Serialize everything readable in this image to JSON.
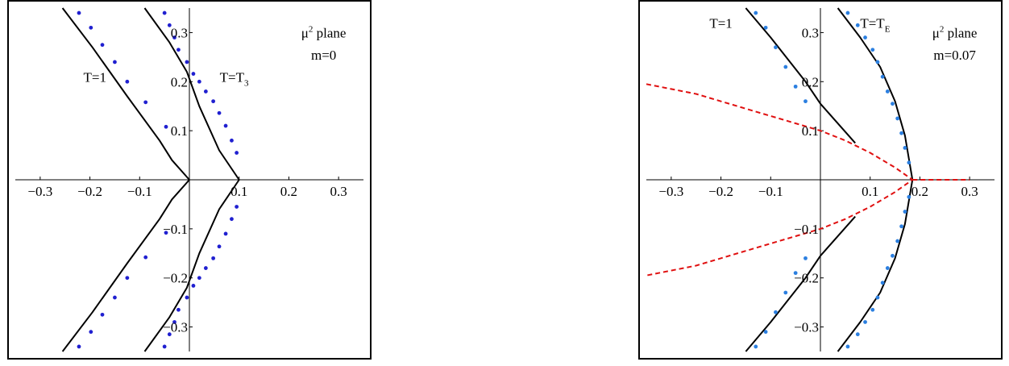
{
  "chart_data": [
    {
      "type": "line",
      "title": "",
      "xlabel": "",
      "ylabel": "",
      "xlim": [
        -0.35,
        0.35
      ],
      "ylim": [
        -0.35,
        0.35
      ],
      "grid": false,
      "x_ticks": [
        -0.3,
        -0.2,
        -0.1,
        0.1,
        0.2,
        0.3
      ],
      "y_ticks": [
        -0.3,
        -0.2,
        -0.1,
        0.1,
        0.2,
        0.3
      ],
      "x_tick_labels": [
        "−0.3",
        "−0.2",
        "−0.1",
        "0.1",
        "0.2",
        "0.3"
      ],
      "y_tick_labels": [
        "−0.3",
        "−0.2",
        "−0.1",
        "0.1",
        "0.2",
        "0.3"
      ],
      "annotations": [
        {
          "text": "μ² plane",
          "x": 0.27,
          "y": 0.29
        },
        {
          "text": "m=0",
          "x": 0.27,
          "y": 0.245
        },
        {
          "text": "T=1",
          "x": -0.19,
          "y": 0.2
        },
        {
          "text": "T=T₃",
          "x": 0.09,
          "y": 0.2
        }
      ],
      "series": [
        {
          "style": "solid",
          "color": "#000000",
          "points": [
            [
              -0.255,
              0.35
            ],
            [
              -0.195,
              0.27
            ],
            [
              -0.125,
              0.17
            ],
            [
              -0.06,
              0.08
            ],
            [
              -0.035,
              0.04
            ],
            [
              0.0,
              0.0
            ],
            [
              -0.035,
              -0.04
            ],
            [
              -0.06,
              -0.08
            ],
            [
              -0.125,
              -0.17
            ],
            [
              -0.195,
              -0.27
            ],
            [
              -0.255,
              -0.35
            ]
          ]
        },
        {
          "style": "solid",
          "color": "#000000",
          "points": [
            [
              -0.09,
              0.35
            ],
            [
              -0.04,
              0.28
            ],
            [
              -0.005,
              0.22
            ],
            [
              0.02,
              0.15
            ],
            [
              0.06,
              0.06
            ],
            [
              0.1,
              0.0
            ],
            [
              0.06,
              -0.06
            ],
            [
              0.02,
              -0.15
            ],
            [
              -0.005,
              -0.22
            ],
            [
              -0.04,
              -0.28
            ],
            [
              -0.09,
              -0.35
            ]
          ]
        },
        {
          "style": "dots",
          "color": "#2020d0",
          "points": [
            [
              -0.222,
              0.34
            ],
            [
              -0.198,
              0.31
            ],
            [
              -0.175,
              0.275
            ],
            [
              -0.15,
              0.24
            ],
            [
              -0.125,
              0.2
            ],
            [
              -0.088,
              0.158
            ],
            [
              -0.047,
              0.108
            ],
            [
              -0.047,
              -0.108
            ],
            [
              -0.088,
              -0.158
            ],
            [
              -0.125,
              -0.2
            ],
            [
              -0.15,
              -0.24
            ],
            [
              -0.175,
              -0.275
            ],
            [
              -0.198,
              -0.31
            ],
            [
              -0.222,
              -0.34
            ],
            [
              -0.05,
              0.34
            ],
            [
              -0.04,
              0.315
            ],
            [
              -0.03,
              0.29
            ],
            [
              -0.022,
              0.265
            ],
            [
              -0.005,
              0.24
            ],
            [
              0.008,
              0.216
            ],
            [
              0.02,
              0.2
            ],
            [
              0.033,
              0.18
            ],
            [
              0.048,
              0.16
            ],
            [
              0.06,
              0.136
            ],
            [
              0.073,
              0.11
            ],
            [
              0.085,
              0.08
            ],
            [
              0.095,
              0.055
            ],
            [
              0.095,
              -0.055
            ],
            [
              0.085,
              -0.08
            ],
            [
              0.073,
              -0.11
            ],
            [
              0.06,
              -0.136
            ],
            [
              0.048,
              -0.16
            ],
            [
              0.033,
              -0.18
            ],
            [
              0.02,
              -0.2
            ],
            [
              0.008,
              -0.216
            ],
            [
              -0.005,
              -0.24
            ],
            [
              -0.022,
              -0.265
            ],
            [
              -0.03,
              -0.29
            ],
            [
              -0.04,
              -0.315
            ],
            [
              -0.05,
              -0.34
            ]
          ]
        }
      ]
    },
    {
      "type": "line",
      "title": "",
      "xlabel": "",
      "ylabel": "",
      "xlim": [
        -0.35,
        0.35
      ],
      "ylim": [
        -0.35,
        0.35
      ],
      "grid": false,
      "x_ticks": [
        -0.3,
        -0.2,
        -0.1,
        0.1,
        0.2,
        0.3
      ],
      "y_ticks": [
        -0.3,
        -0.2,
        -0.1,
        0.1,
        0.2,
        0.3
      ],
      "x_tick_labels": [
        "−0.3",
        "−0.2",
        "−0.1",
        "0.1",
        "0.2",
        "0.3"
      ],
      "y_tick_labels": [
        "−0.3",
        "−0.2",
        "−0.1",
        "0.1",
        "0.2",
        "0.3"
      ],
      "annotations": [
        {
          "text": "μ² plane",
          "x": 0.27,
          "y": 0.29
        },
        {
          "text": "m=0.07",
          "x": 0.27,
          "y": 0.245
        },
        {
          "text": "T=1",
          "x": -0.2,
          "y": 0.31
        },
        {
          "text": "T=Tᴇ",
          "x": 0.11,
          "y": 0.31
        }
      ],
      "series": [
        {
          "style": "solid",
          "color": "#000000",
          "points": [
            [
              -0.15,
              0.35
            ],
            [
              -0.1,
              0.29
            ],
            [
              -0.03,
              0.2
            ],
            [
              0.0,
              0.155
            ],
            [
              0.07,
              0.075
            ]
          ]
        },
        {
          "style": "solid",
          "color": "#000000",
          "points": [
            [
              -0.15,
              -0.35
            ],
            [
              -0.1,
              -0.29
            ],
            [
              -0.03,
              -0.2
            ],
            [
              0.0,
              -0.155
            ],
            [
              0.07,
              -0.075
            ]
          ]
        },
        {
          "style": "solid",
          "color": "#000000",
          "points": [
            [
              0.035,
              0.35
            ],
            [
              0.08,
              0.29
            ],
            [
              0.12,
              0.23
            ],
            [
              0.15,
              0.16
            ],
            [
              0.17,
              0.09
            ],
            [
              0.185,
              0.0
            ],
            [
              0.17,
              -0.09
            ],
            [
              0.15,
              -0.16
            ],
            [
              0.12,
              -0.23
            ],
            [
              0.08,
              -0.29
            ],
            [
              0.035,
              -0.35
            ]
          ]
        },
        {
          "style": "dashed",
          "color": "#e01010",
          "points": [
            [
              -0.35,
              0.195
            ],
            [
              -0.25,
              0.175
            ],
            [
              -0.15,
              0.145
            ],
            [
              -0.05,
              0.115
            ],
            [
              0.0,
              0.1
            ],
            [
              0.05,
              0.08
            ],
            [
              0.1,
              0.055
            ],
            [
              0.15,
              0.025
            ],
            [
              0.185,
              0.0
            ],
            [
              0.15,
              -0.025
            ],
            [
              0.1,
              -0.055
            ],
            [
              0.05,
              -0.08
            ],
            [
              0.0,
              -0.1
            ],
            [
              -0.05,
              -0.115
            ],
            [
              -0.15,
              -0.145
            ],
            [
              -0.25,
              -0.175
            ],
            [
              -0.35,
              -0.195
            ]
          ]
        },
        {
          "style": "dashed",
          "color": "#e01010",
          "points": [
            [
              0.185,
              0.0
            ],
            [
              0.3,
              0.0
            ]
          ]
        },
        {
          "style": "dots",
          "color": "#2b7fe0",
          "points": [
            [
              -0.13,
              0.34
            ],
            [
              -0.11,
              0.31
            ],
            [
              -0.09,
              0.27
            ],
            [
              -0.07,
              0.23
            ],
            [
              -0.05,
              0.19
            ],
            [
              -0.03,
              0.16
            ],
            [
              -0.03,
              -0.16
            ],
            [
              -0.05,
              -0.19
            ],
            [
              -0.07,
              -0.23
            ],
            [
              -0.09,
              -0.27
            ],
            [
              -0.11,
              -0.31
            ],
            [
              -0.13,
              -0.34
            ],
            [
              0.055,
              0.34
            ],
            [
              0.075,
              0.315
            ],
            [
              0.09,
              0.29
            ],
            [
              0.105,
              0.265
            ],
            [
              0.115,
              0.24
            ],
            [
              0.125,
              0.21
            ],
            [
              0.135,
              0.18
            ],
            [
              0.145,
              0.155
            ],
            [
              0.155,
              0.125
            ],
            [
              0.163,
              0.095
            ],
            [
              0.17,
              0.065
            ],
            [
              0.178,
              0.035
            ],
            [
              0.178,
              -0.035
            ],
            [
              0.17,
              -0.065
            ],
            [
              0.163,
              -0.095
            ],
            [
              0.155,
              -0.125
            ],
            [
              0.145,
              -0.155
            ],
            [
              0.135,
              -0.18
            ],
            [
              0.125,
              -0.21
            ],
            [
              0.115,
              -0.24
            ],
            [
              0.105,
              -0.265
            ],
            [
              0.09,
              -0.29
            ],
            [
              0.075,
              -0.315
            ],
            [
              0.055,
              -0.34
            ]
          ]
        }
      ]
    }
  ]
}
